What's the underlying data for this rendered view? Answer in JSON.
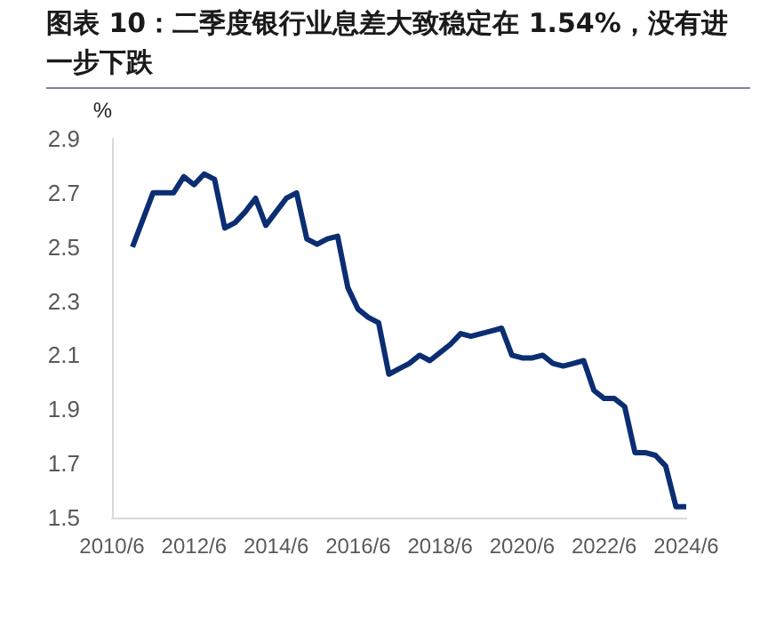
{
  "chart_data": {
    "type": "line",
    "title": "图表 10：二季度银行业息差大致稳定在 1.54%，没有进一步下跌",
    "ylabel": "%",
    "categories": [
      "2010/6",
      null,
      null,
      null,
      null,
      null,
      null,
      null,
      "2012/6",
      null,
      null,
      null,
      null,
      null,
      null,
      null,
      "2014/6",
      null,
      null,
      null,
      null,
      null,
      null,
      null,
      "2016/6",
      null,
      null,
      null,
      null,
      null,
      null,
      null,
      "2018/6",
      null,
      null,
      null,
      null,
      null,
      null,
      null,
      "2020/6",
      null,
      null,
      null,
      null,
      null,
      null,
      null,
      "2022/6",
      null,
      null,
      null,
      null,
      null,
      null,
      null,
      "2024/6"
    ],
    "series": [
      {
        "color": "#0b2d72",
        "values": [
          null,
          null,
          2.5,
          null,
          2.7,
          null,
          2.7,
          2.76,
          2.73,
          2.77,
          2.75,
          2.57,
          2.59,
          2.63,
          2.68,
          2.58,
          2.63,
          2.68,
          2.7,
          2.53,
          2.51,
          2.53,
          2.54,
          2.35,
          2.27,
          2.24,
          2.22,
          2.03,
          2.05,
          2.07,
          2.1,
          2.08,
          2.11,
          2.14,
          2.18,
          2.17,
          2.18,
          2.19,
          2.2,
          2.1,
          2.09,
          2.09,
          2.1,
          2.07,
          2.06,
          2.07,
          2.08,
          1.97,
          1.94,
          1.94,
          1.91,
          1.74,
          1.74,
          1.73,
          1.69,
          1.54,
          1.54
        ]
      }
    ],
    "ylim": [
      1.5,
      2.9
    ],
    "yticks": [
      1.5,
      1.7,
      1.9,
      2.1,
      2.3,
      2.5,
      2.7,
      2.9
    ],
    "grid": false
  }
}
